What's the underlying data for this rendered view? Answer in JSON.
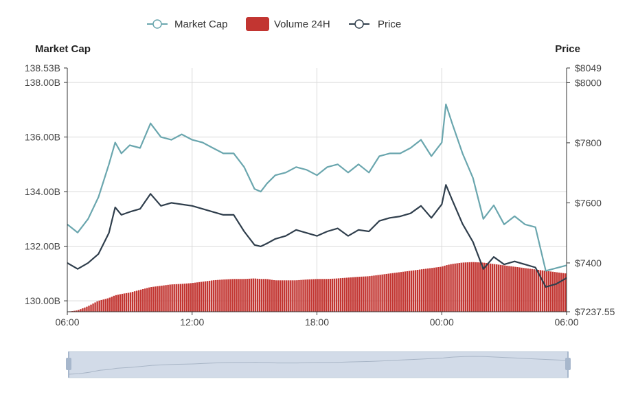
{
  "legend": {
    "market_cap": "Market Cap",
    "volume": "Volume 24H",
    "price": "Price"
  },
  "colors": {
    "market_cap": "#6aa6ae",
    "price": "#2f3e4c",
    "volume": "#c23531",
    "grid": "#d9d9d9",
    "slider_fill": "#d2dbe8",
    "slider_handle": "#a7b7cc"
  },
  "chart_data": {
    "type": "line",
    "title": "",
    "x_range": [
      "06:00",
      "06:00"
    ],
    "x_ticks": [
      "06:00",
      "12:00",
      "18:00",
      "00:00",
      "06:00"
    ],
    "left_axis": {
      "title": "Market Cap",
      "min": 129.6,
      "max": 138.53,
      "ticks": [
        "130.00B",
        "132.00B",
        "134.00B",
        "136.00B",
        "138.00B"
      ],
      "tick_values": [
        130,
        132,
        134,
        136,
        138
      ],
      "max_label": "138.53B"
    },
    "right_axis": {
      "title": "Price",
      "min": 7237.55,
      "max": 8049,
      "ticks": [
        "$7237.55",
        "$7400",
        "$7600",
        "$7800",
        "$8000",
        "$8049"
      ],
      "tick_values": [
        7237.55,
        7400,
        7600,
        7800,
        8000,
        8049
      ]
    },
    "x_hours": [
      0,
      0.5,
      1,
      1.5,
      2,
      2.3,
      2.6,
      3,
      3.5,
      4,
      4.5,
      5,
      5.5,
      6,
      6.5,
      7,
      7.5,
      8,
      8.5,
      9,
      9.3,
      9.6,
      10,
      10.5,
      11,
      11.5,
      12,
      12.5,
      13,
      13.5,
      14,
      14.5,
      15,
      15.5,
      16,
      16.5,
      17,
      17.5,
      18,
      18.2,
      18.5,
      19,
      19.5,
      20,
      20.5,
      21,
      21.5,
      22,
      22.5,
      23,
      23.5,
      24
    ],
    "series": [
      {
        "name": "Market Cap",
        "axis": "left",
        "values": [
          132.8,
          132.5,
          133.0,
          133.8,
          135.0,
          135.8,
          135.4,
          135.7,
          135.6,
          136.5,
          136.0,
          135.9,
          136.1,
          135.9,
          135.8,
          135.6,
          135.4,
          135.4,
          134.9,
          134.1,
          134.0,
          134.3,
          134.6,
          134.7,
          134.9,
          134.8,
          134.6,
          134.9,
          135.0,
          134.7,
          135.0,
          134.7,
          135.3,
          135.4,
          135.4,
          135.6,
          135.9,
          135.3,
          135.8,
          137.2,
          136.5,
          135.4,
          134.5,
          133.0,
          133.5,
          132.8,
          133.1,
          132.8,
          132.7,
          131.1,
          131.2,
          131.3
        ]
      },
      {
        "name": "Price",
        "axis": "right",
        "values": [
          7400,
          7380,
          7400,
          7430,
          7500,
          7585,
          7560,
          7570,
          7580,
          7630,
          7590,
          7600,
          7595,
          7590,
          7580,
          7570,
          7560,
          7560,
          7505,
          7460,
          7455,
          7465,
          7480,
          7490,
          7510,
          7500,
          7490,
          7505,
          7515,
          7490,
          7510,
          7505,
          7540,
          7550,
          7555,
          7565,
          7590,
          7550,
          7595,
          7660,
          7610,
          7530,
          7470,
          7380,
          7420,
          7395,
          7405,
          7395,
          7385,
          7320,
          7330,
          7350
        ]
      },
      {
        "name": "Volume 24H",
        "axis": "left",
        "values": [
          129.6,
          129.65,
          129.8,
          130.0,
          130.1,
          130.2,
          130.25,
          130.3,
          130.4,
          130.5,
          130.55,
          130.6,
          130.62,
          130.65,
          130.7,
          130.75,
          130.78,
          130.8,
          130.8,
          130.82,
          130.8,
          130.8,
          130.75,
          130.75,
          130.75,
          130.78,
          130.8,
          130.8,
          130.82,
          130.85,
          130.88,
          130.9,
          130.95,
          131.0,
          131.05,
          131.1,
          131.15,
          131.2,
          131.25,
          131.3,
          131.35,
          131.4,
          131.42,
          131.4,
          131.35,
          131.3,
          131.25,
          131.2,
          131.15,
          131.1,
          131.05,
          131.0
        ]
      }
    ],
    "grid": true,
    "legend_position": "top-center"
  }
}
